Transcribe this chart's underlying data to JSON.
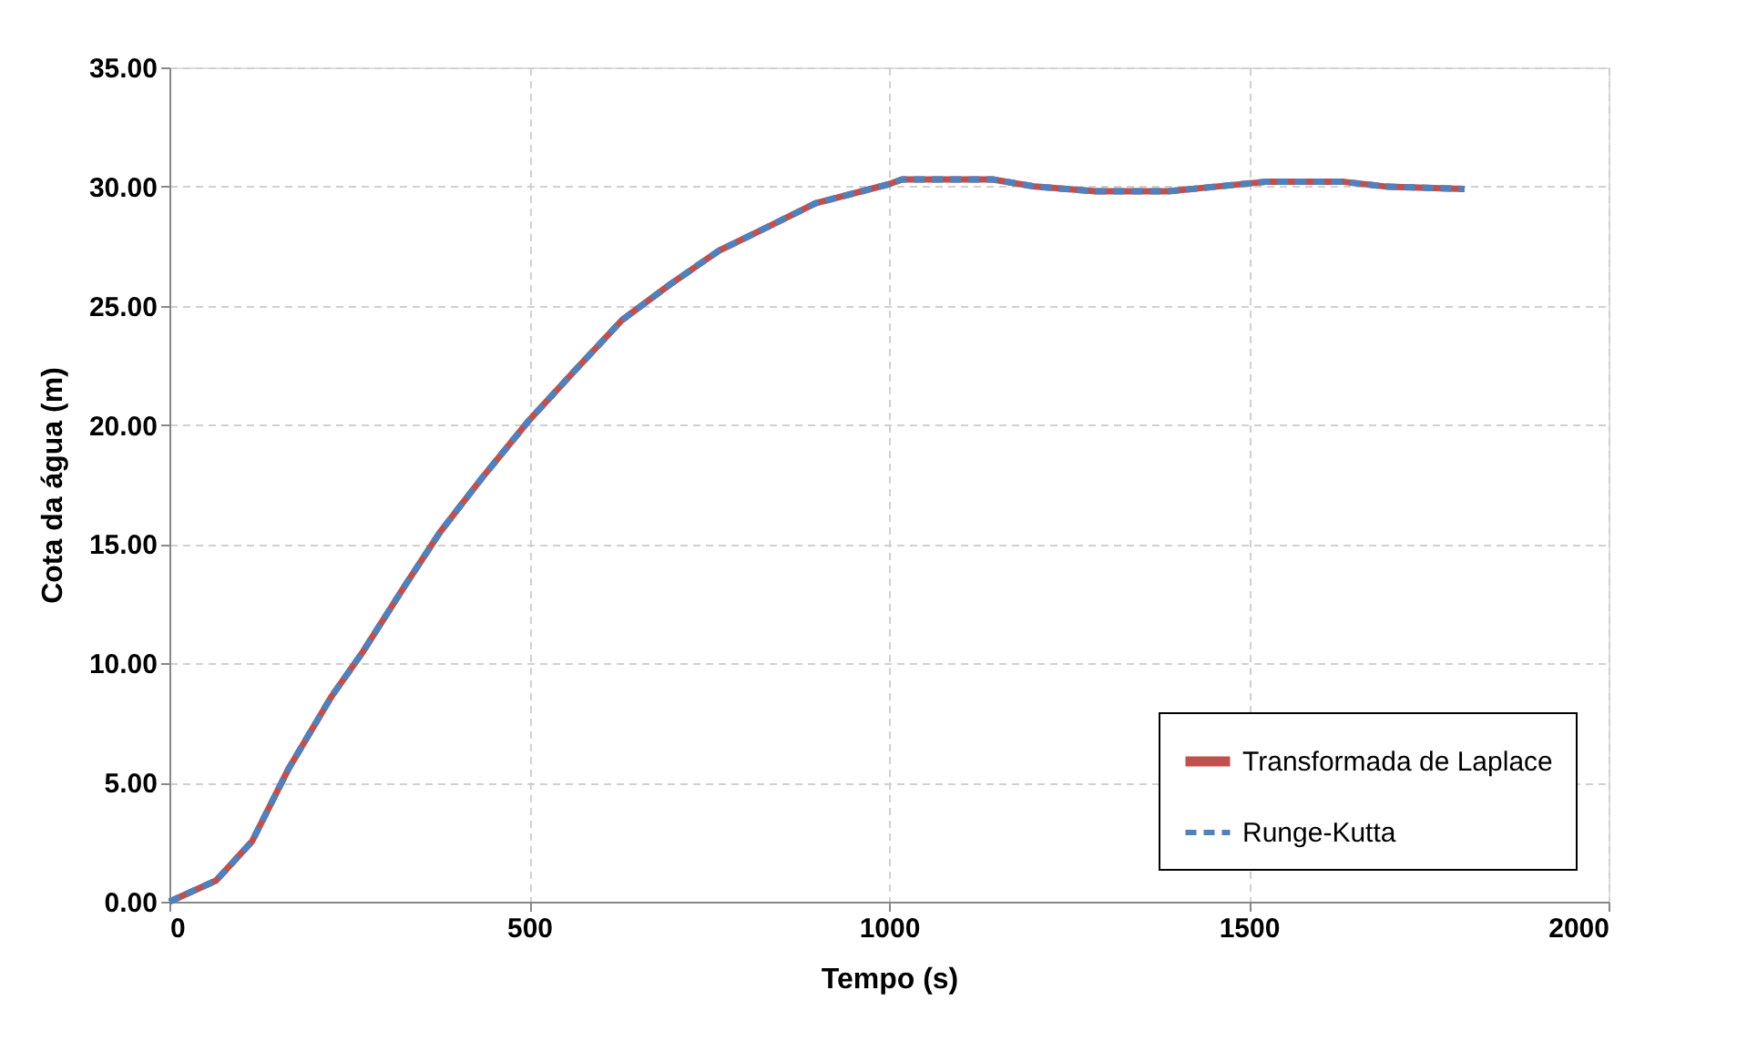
{
  "chart_data": {
    "type": "line",
    "xlabel": "Tempo (s)",
    "ylabel": "Cota da água (m)",
    "xlim": [
      0,
      2000
    ],
    "xticks": [
      0,
      500,
      1000,
      1500,
      2000
    ],
    "ylim": [
      0,
      35
    ],
    "yticks": [
      {
        "value": 0,
        "label": "0.00"
      },
      {
        "value": 5,
        "label": "5.00"
      },
      {
        "value": 10,
        "label": "10.00"
      },
      {
        "value": 15,
        "label": "15.00"
      },
      {
        "value": 20,
        "label": "20.00"
      },
      {
        "value": 25,
        "label": "25.00"
      },
      {
        "value": 30,
        "label": "30.00"
      },
      {
        "value": 35,
        "label": "35.00"
      }
    ],
    "grid": true,
    "legend": "bottom right",
    "marker": "none",
    "x": [
      0,
      65,
      115,
      166,
      225,
      267,
      326,
      376,
      435,
      500,
      561,
      629,
      696,
      763,
      831,
      898,
      1000,
      1018,
      1144,
      1203,
      1287,
      1388,
      1455,
      1523,
      1632,
      1691,
      1800
    ],
    "series": [
      {
        "name": "Transformada de Laplace",
        "color": "#c0504d",
        "line_style": "solid",
        "values": [
          0,
          0.89,
          2.54,
          5.6,
          8.6,
          10.4,
          13.2,
          15.5,
          17.8,
          20.2,
          22.2,
          24.4,
          25.9,
          27.3,
          28.3,
          29.3,
          30.1,
          30.3,
          30.3,
          30.0,
          29.8,
          29.8,
          30.0,
          30.2,
          30.2,
          30.0,
          29.9
        ]
      },
      {
        "name": "Runge-Kutta",
        "color": "#4f81bd",
        "line_style": "dashed",
        "values": [
          0,
          0.89,
          2.54,
          5.6,
          8.6,
          10.4,
          13.2,
          15.5,
          17.8,
          20.2,
          22.2,
          24.4,
          25.9,
          27.3,
          28.3,
          29.3,
          30.1,
          30.3,
          30.3,
          30.0,
          29.8,
          29.8,
          30.0,
          30.2,
          30.2,
          30.0,
          29.9
        ]
      }
    ]
  }
}
